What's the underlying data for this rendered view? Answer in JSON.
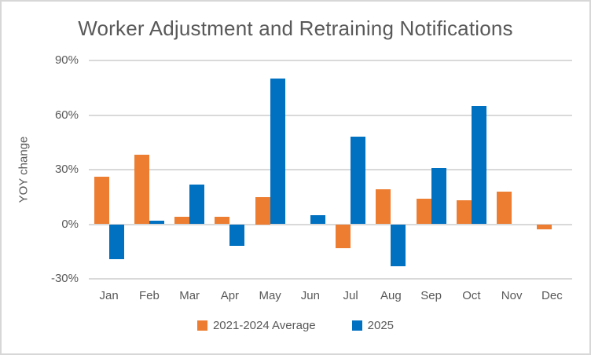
{
  "chart_data": {
    "type": "bar",
    "title": "Worker Adjustment and Retraining Notifications",
    "ylabel": "YOY change",
    "xlabel": "",
    "categories": [
      "Jan",
      "Feb",
      "Mar",
      "Apr",
      "May",
      "Jun",
      "Jul",
      "Aug",
      "Sep",
      "Oct",
      "Nov",
      "Dec"
    ],
    "series": [
      {
        "name": "2021-2024 Average",
        "color": "#ED7D31",
        "values": [
          26,
          38,
          4,
          4,
          15,
          0,
          -13,
          19,
          14,
          13,
          18,
          -3
        ]
      },
      {
        "name": "2025",
        "color": "#0070C0",
        "values": [
          -19,
          2,
          22,
          -12,
          80,
          5,
          48,
          -23,
          31,
          65,
          0,
          0
        ]
      }
    ],
    "ylim": [
      -30,
      90
    ],
    "yticks": [
      90,
      60,
      30,
      0,
      -30
    ],
    "ytick_labels": [
      "90%",
      "60%",
      "30%",
      "0%",
      "-30%"
    ],
    "grid": true,
    "legend_position": "bottom"
  }
}
